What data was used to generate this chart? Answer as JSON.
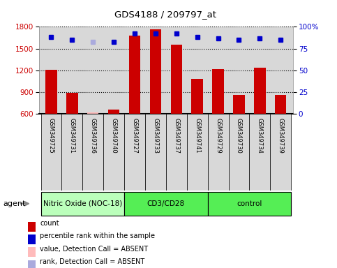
{
  "title": "GDS4188 / 209797_at",
  "samples": [
    "GSM349725",
    "GSM349731",
    "GSM349736",
    "GSM349740",
    "GSM349727",
    "GSM349733",
    "GSM349737",
    "GSM349741",
    "GSM349729",
    "GSM349730",
    "GSM349734",
    "GSM349739"
  ],
  "counts": [
    1210,
    890,
    620,
    660,
    1680,
    1770,
    1550,
    1080,
    1220,
    860,
    1240,
    860
  ],
  "percentile_ranks": [
    88,
    85,
    null,
    83,
    92,
    92,
    92,
    88,
    87,
    85,
    87,
    85
  ],
  "detection_absent_count_idx": [
    2
  ],
  "detection_absent_rank_idx": [
    2
  ],
  "bar_color": "#cc0000",
  "absent_bar_color": "#ffbbbb",
  "dot_color": "#0000cc",
  "absent_dot_color": "#aaaadd",
  "ylim_left": [
    600,
    1800
  ],
  "ylim_right": [
    0,
    100
  ],
  "yticks_left": [
    600,
    900,
    1200,
    1500,
    1800
  ],
  "yticks_right": [
    0,
    25,
    50,
    75,
    100
  ],
  "ytick_right_labels": [
    "0",
    "25",
    "50",
    "75",
    "100%"
  ],
  "groups": [
    {
      "label": "Nitric Oxide (NOC-18)",
      "start": 0,
      "end": 4,
      "color": "#bbffbb"
    },
    {
      "label": "CD3/CD28",
      "start": 4,
      "end": 8,
      "color": "#55ee55"
    },
    {
      "label": "control",
      "start": 8,
      "end": 12,
      "color": "#55ee55"
    }
  ],
  "agent_label": "agent",
  "background_color": "#ffffff",
  "plot_bg_color": "#d8d8d8",
  "legend_items": [
    {
      "label": "count",
      "color": "#cc0000"
    },
    {
      "label": "percentile rank within the sample",
      "color": "#0000cc"
    },
    {
      "label": "value, Detection Call = ABSENT",
      "color": "#ffbbbb"
    },
    {
      "label": "rank, Detection Call = ABSENT",
      "color": "#aaaadd"
    }
  ]
}
